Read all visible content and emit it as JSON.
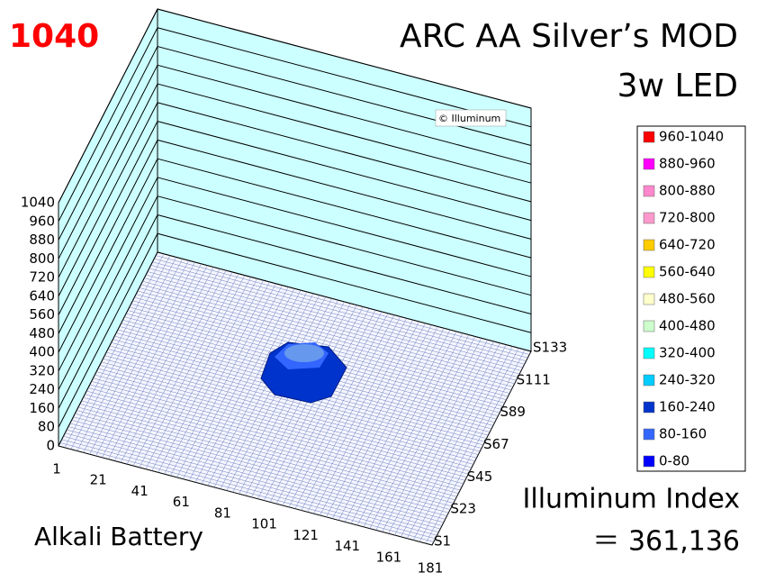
{
  "chart_data": {
    "type": "surface3d",
    "title": "ARC AA Silver’s MOD",
    "subtitle": "3w LED",
    "peak": "1040",
    "watermark": "© Illuminum",
    "x_axis_label": "Alkali Battery",
    "index_label": "Illuminum Index",
    "index_value": "＝ 361,136",
    "x_categories": [
      "1",
      "21",
      "41",
      "61",
      "81",
      "101",
      "121",
      "141",
      "161",
      "181"
    ],
    "y_categories": [
      "S1",
      "S23",
      "S45",
      "S67",
      "S89",
      "S111",
      "S133"
    ],
    "zlim": [
      0,
      1040
    ],
    "zticks": [
      0,
      80,
      160,
      240,
      320,
      400,
      480,
      560,
      640,
      720,
      800,
      880,
      960,
      1040
    ],
    "wall_color": "#ccffff",
    "legend": [
      {
        "name": "960-1040",
        "color": "#ff0000"
      },
      {
        "name": "880-960",
        "color": "#ff00ff"
      },
      {
        "name": "800-880",
        "color": "#ff88cc"
      },
      {
        "name": "720-800",
        "color": "#ff99cc"
      },
      {
        "name": "640-720",
        "color": "#ffcc00"
      },
      {
        "name": "560-640",
        "color": "#ffff00"
      },
      {
        "name": "480-560",
        "color": "#ffffcc"
      },
      {
        "name": "400-480",
        "color": "#ccffcc"
      },
      {
        "name": "320-400",
        "color": "#00ffff"
      },
      {
        "name": "240-320",
        "color": "#00ccff"
      },
      {
        "name": "160-240",
        "color": "#0033cc"
      },
      {
        "name": "80-160",
        "color": "#3366ff"
      },
      {
        "name": "0-80",
        "color": "#0000ff"
      }
    ]
  }
}
